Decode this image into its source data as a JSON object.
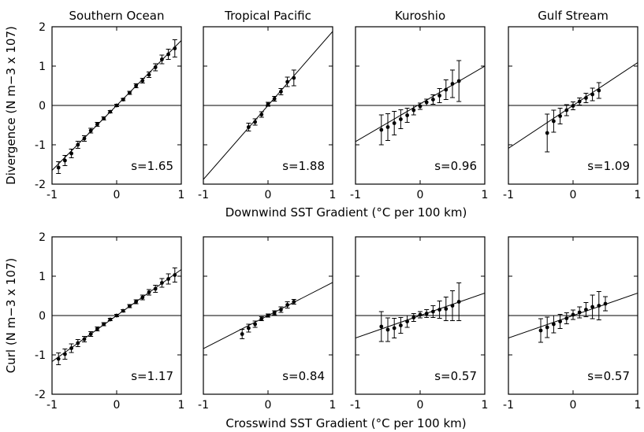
{
  "figure": {
    "row_xlabels": [
      "Downwind SST Gradient (°C per 100 km)",
      "Crosswind SST Gradient (°C per 100 km)"
    ],
    "row_ylabels": [
      "Divergence (N m−3 x 107)",
      "Curl (N m−3 x 107)"
    ]
  },
  "chart_data": [
    {
      "type": "scatter",
      "row": 0,
      "col": 0,
      "title": "Southern Ocean",
      "xlim": [
        -1,
        1
      ],
      "ylim": [
        -2,
        2
      ],
      "xticks": [
        -1,
        0,
        1
      ],
      "yticks": [
        -2,
        -1,
        0,
        1,
        2
      ],
      "show_yticklabels": true,
      "annotation": "s=1.65",
      "fit": {
        "slope": 1.65,
        "intercept": 0
      },
      "points": [
        {
          "x": -0.9,
          "y": -1.58,
          "err": 0.15
        },
        {
          "x": -0.8,
          "y": -1.4,
          "err": 0.13
        },
        {
          "x": -0.7,
          "y": -1.22,
          "err": 0.11
        },
        {
          "x": -0.6,
          "y": -1.0,
          "err": 0.09
        },
        {
          "x": -0.5,
          "y": -0.84,
          "err": 0.07
        },
        {
          "x": -0.4,
          "y": -0.64,
          "err": 0.06
        },
        {
          "x": -0.3,
          "y": -0.48,
          "err": 0.05
        },
        {
          "x": -0.2,
          "y": -0.33,
          "err": 0.04
        },
        {
          "x": -0.1,
          "y": -0.16,
          "err": 0.03
        },
        {
          "x": 0.0,
          "y": 0.0,
          "err": 0.03
        },
        {
          "x": 0.1,
          "y": 0.15,
          "err": 0.03
        },
        {
          "x": 0.2,
          "y": 0.32,
          "err": 0.04
        },
        {
          "x": 0.3,
          "y": 0.5,
          "err": 0.05
        },
        {
          "x": 0.4,
          "y": 0.63,
          "err": 0.06
        },
        {
          "x": 0.5,
          "y": 0.78,
          "err": 0.07
        },
        {
          "x": 0.6,
          "y": 0.97,
          "err": 0.09
        },
        {
          "x": 0.7,
          "y": 1.17,
          "err": 0.11
        },
        {
          "x": 0.8,
          "y": 1.3,
          "err": 0.13
        },
        {
          "x": 0.9,
          "y": 1.45,
          "err": 0.22
        }
      ]
    },
    {
      "type": "scatter",
      "row": 0,
      "col": 1,
      "title": "Tropical Pacific",
      "xlim": [
        -1,
        1
      ],
      "ylim": [
        -2,
        2
      ],
      "xticks": [
        -1,
        0,
        1
      ],
      "yticks": [
        -2,
        -1,
        0,
        1,
        2
      ],
      "show_yticklabels": false,
      "annotation": "s=1.88",
      "fit": {
        "slope": 1.88,
        "intercept": 0
      },
      "points": [
        {
          "x": -0.3,
          "y": -0.55,
          "err": 0.1
        },
        {
          "x": -0.2,
          "y": -0.42,
          "err": 0.08
        },
        {
          "x": -0.1,
          "y": -0.23,
          "err": 0.07
        },
        {
          "x": 0.0,
          "y": 0.03,
          "err": 0.05
        },
        {
          "x": 0.1,
          "y": 0.17,
          "err": 0.06
        },
        {
          "x": 0.2,
          "y": 0.35,
          "err": 0.08
        },
        {
          "x": 0.3,
          "y": 0.6,
          "err": 0.12
        },
        {
          "x": 0.4,
          "y": 0.7,
          "err": 0.2
        }
      ]
    },
    {
      "type": "scatter",
      "row": 0,
      "col": 2,
      "title": "Kuroshio",
      "xlim": [
        -1,
        1
      ],
      "ylim": [
        -2,
        2
      ],
      "xticks": [
        -1,
        0,
        1
      ],
      "yticks": [
        -2,
        -1,
        0,
        1,
        2
      ],
      "show_yticklabels": false,
      "annotation": "s=0.96",
      "fit": {
        "slope": 0.96,
        "intercept": 0.04
      },
      "points": [
        {
          "x": -0.6,
          "y": -0.62,
          "err": 0.38
        },
        {
          "x": -0.5,
          "y": -0.55,
          "err": 0.34
        },
        {
          "x": -0.4,
          "y": -0.45,
          "err": 0.3
        },
        {
          "x": -0.3,
          "y": -0.35,
          "err": 0.24
        },
        {
          "x": -0.2,
          "y": -0.25,
          "err": 0.18
        },
        {
          "x": -0.1,
          "y": -0.12,
          "err": 0.12
        },
        {
          "x": 0.0,
          "y": -0.02,
          "err": 0.08
        },
        {
          "x": 0.1,
          "y": 0.08,
          "err": 0.08
        },
        {
          "x": 0.2,
          "y": 0.15,
          "err": 0.12
        },
        {
          "x": 0.3,
          "y": 0.25,
          "err": 0.18
        },
        {
          "x": 0.4,
          "y": 0.4,
          "err": 0.25
        },
        {
          "x": 0.5,
          "y": 0.55,
          "err": 0.35
        },
        {
          "x": 0.6,
          "y": 0.62,
          "err": 0.52
        }
      ]
    },
    {
      "type": "scatter",
      "row": 0,
      "col": 3,
      "title": "Gulf Stream",
      "xlim": [
        -1,
        1
      ],
      "ylim": [
        -2,
        2
      ],
      "xticks": [
        -1,
        0,
        1
      ],
      "yticks": [
        -2,
        -1,
        0,
        1,
        2
      ],
      "show_yticklabels": false,
      "annotation": "s=1.09",
      "fit": {
        "slope": 1.09,
        "intercept": 0
      },
      "points": [
        {
          "x": -0.4,
          "y": -0.7,
          "err": 0.48
        },
        {
          "x": -0.3,
          "y": -0.4,
          "err": 0.28
        },
        {
          "x": -0.2,
          "y": -0.27,
          "err": 0.2
        },
        {
          "x": -0.1,
          "y": -0.12,
          "err": 0.14
        },
        {
          "x": 0.0,
          "y": -0.01,
          "err": 0.1
        },
        {
          "x": 0.1,
          "y": 0.1,
          "err": 0.09
        },
        {
          "x": 0.2,
          "y": 0.19,
          "err": 0.12
        },
        {
          "x": 0.3,
          "y": 0.28,
          "err": 0.16
        },
        {
          "x": 0.4,
          "y": 0.38,
          "err": 0.2
        }
      ]
    },
    {
      "type": "scatter",
      "row": 1,
      "col": 0,
      "title": "",
      "xlim": [
        -1,
        1
      ],
      "ylim": [
        -2,
        2
      ],
      "xticks": [
        -1,
        0,
        1
      ],
      "yticks": [
        -2,
        -1,
        0,
        1,
        2
      ],
      "show_yticklabels": true,
      "annotation": "s=1.17",
      "fit": {
        "slope": 1.17,
        "intercept": 0
      },
      "points": [
        {
          "x": -0.9,
          "y": -1.1,
          "err": 0.15
        },
        {
          "x": -0.8,
          "y": -0.98,
          "err": 0.13
        },
        {
          "x": -0.7,
          "y": -0.83,
          "err": 0.11
        },
        {
          "x": -0.6,
          "y": -0.7,
          "err": 0.09
        },
        {
          "x": -0.5,
          "y": -0.6,
          "err": 0.07
        },
        {
          "x": -0.4,
          "y": -0.47,
          "err": 0.06
        },
        {
          "x": -0.3,
          "y": -0.34,
          "err": 0.05
        },
        {
          "x": -0.2,
          "y": -0.22,
          "err": 0.04
        },
        {
          "x": -0.1,
          "y": -0.1,
          "err": 0.03
        },
        {
          "x": 0.0,
          "y": 0.0,
          "err": 0.03
        },
        {
          "x": 0.1,
          "y": 0.12,
          "err": 0.03
        },
        {
          "x": 0.2,
          "y": 0.24,
          "err": 0.04
        },
        {
          "x": 0.3,
          "y": 0.35,
          "err": 0.05
        },
        {
          "x": 0.4,
          "y": 0.46,
          "err": 0.06
        },
        {
          "x": 0.5,
          "y": 0.59,
          "err": 0.07
        },
        {
          "x": 0.6,
          "y": 0.68,
          "err": 0.09
        },
        {
          "x": 0.7,
          "y": 0.83,
          "err": 0.11
        },
        {
          "x": 0.8,
          "y": 0.93,
          "err": 0.13
        },
        {
          "x": 0.9,
          "y": 1.03,
          "err": 0.18
        }
      ]
    },
    {
      "type": "scatter",
      "row": 1,
      "col": 1,
      "title": "",
      "xlim": [
        -1,
        1
      ],
      "ylim": [
        -2,
        2
      ],
      "xticks": [
        -1,
        0,
        1
      ],
      "yticks": [
        -2,
        -1,
        0,
        1,
        2
      ],
      "show_yticklabels": false,
      "annotation": "s=0.84",
      "fit": {
        "slope": 0.84,
        "intercept": 0
      },
      "points": [
        {
          "x": -0.4,
          "y": -0.47,
          "err": 0.12
        },
        {
          "x": -0.3,
          "y": -0.32,
          "err": 0.1
        },
        {
          "x": -0.2,
          "y": -0.22,
          "err": 0.08
        },
        {
          "x": -0.1,
          "y": -0.08,
          "err": 0.05
        },
        {
          "x": 0.0,
          "y": 0.0,
          "err": 0.04
        },
        {
          "x": 0.1,
          "y": 0.07,
          "err": 0.05
        },
        {
          "x": 0.2,
          "y": 0.15,
          "err": 0.07
        },
        {
          "x": 0.3,
          "y": 0.27,
          "err": 0.08
        },
        {
          "x": 0.4,
          "y": 0.35,
          "err": 0.06
        }
      ]
    },
    {
      "type": "scatter",
      "row": 1,
      "col": 2,
      "title": "",
      "xlim": [
        -1,
        1
      ],
      "ylim": [
        -2,
        2
      ],
      "xticks": [
        -1,
        0,
        1
      ],
      "yticks": [
        -2,
        -1,
        0,
        1,
        2
      ],
      "show_yticklabels": false,
      "annotation": "s=0.57",
      "fit": {
        "slope": 0.57,
        "intercept": 0
      },
      "points": [
        {
          "x": -0.6,
          "y": -0.28,
          "err": 0.38
        },
        {
          "x": -0.5,
          "y": -0.36,
          "err": 0.3
        },
        {
          "x": -0.4,
          "y": -0.32,
          "err": 0.25
        },
        {
          "x": -0.3,
          "y": -0.25,
          "err": 0.2
        },
        {
          "x": -0.2,
          "y": -0.15,
          "err": 0.15
        },
        {
          "x": -0.1,
          "y": -0.05,
          "err": 0.1
        },
        {
          "x": 0.0,
          "y": 0.02,
          "err": 0.08
        },
        {
          "x": 0.1,
          "y": 0.05,
          "err": 0.1
        },
        {
          "x": 0.2,
          "y": 0.1,
          "err": 0.15
        },
        {
          "x": 0.3,
          "y": 0.15,
          "err": 0.22
        },
        {
          "x": 0.4,
          "y": 0.17,
          "err": 0.3
        },
        {
          "x": 0.5,
          "y": 0.25,
          "err": 0.38
        },
        {
          "x": 0.6,
          "y": 0.35,
          "err": 0.48
        }
      ]
    },
    {
      "type": "scatter",
      "row": 1,
      "col": 3,
      "title": "",
      "xlim": [
        -1,
        1
      ],
      "ylim": [
        -2,
        2
      ],
      "xticks": [
        -1,
        0,
        1
      ],
      "yticks": [
        -2,
        -1,
        0,
        1,
        2
      ],
      "show_yticklabels": false,
      "annotation": "s=0.57",
      "fit": {
        "slope": 0.57,
        "intercept": 0
      },
      "points": [
        {
          "x": -0.5,
          "y": -0.38,
          "err": 0.3
        },
        {
          "x": -0.4,
          "y": -0.3,
          "err": 0.26
        },
        {
          "x": -0.3,
          "y": -0.22,
          "err": 0.22
        },
        {
          "x": -0.2,
          "y": -0.15,
          "err": 0.18
        },
        {
          "x": -0.1,
          "y": -0.07,
          "err": 0.14
        },
        {
          "x": 0.0,
          "y": 0.02,
          "err": 0.12
        },
        {
          "x": 0.1,
          "y": 0.08,
          "err": 0.14
        },
        {
          "x": 0.2,
          "y": 0.15,
          "err": 0.18
        },
        {
          "x": 0.3,
          "y": 0.22,
          "err": 0.3
        },
        {
          "x": 0.4,
          "y": 0.25,
          "err": 0.36
        },
        {
          "x": 0.5,
          "y": 0.3,
          "err": 0.18
        }
      ]
    }
  ]
}
